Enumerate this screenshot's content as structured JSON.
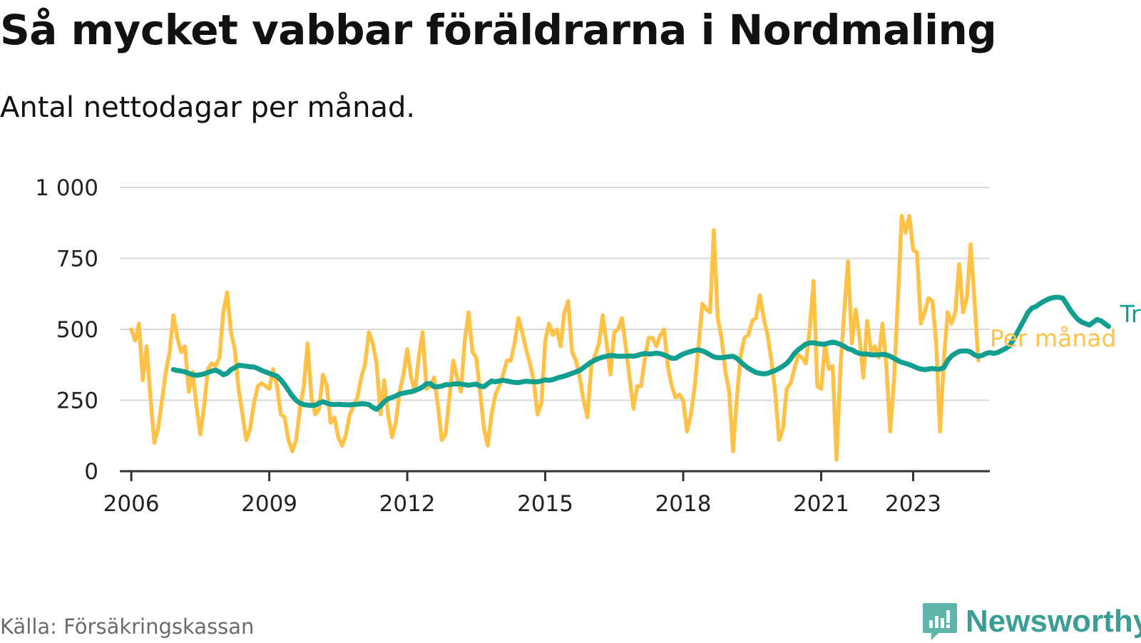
{
  "title": "Så mycket vabbar föräldrarna i Nordmaling",
  "subtitle": "Antal nettodagar per månad.",
  "source": "Källa: Försäkringskassan",
  "brand": {
    "name": "Newsworthy",
    "icon": "newsworthy-logo-icon",
    "color": "#3a9e93"
  },
  "chart_data": {
    "type": "line",
    "title": "Så mycket vabbar föräldrarna i Nordmaling",
    "subtitle": "Antal nettodagar per månad.",
    "xlabel": "",
    "ylabel": "",
    "ylim": [
      0,
      1000
    ],
    "xlim": [
      "2005-10",
      "2024-09"
    ],
    "x_ticks": [
      {
        "label": "2006",
        "value": "2006-01"
      },
      {
        "label": "2009",
        "value": "2009-01"
      },
      {
        "label": "2012",
        "value": "2012-01"
      },
      {
        "label": "2015",
        "value": "2015-01"
      },
      {
        "label": "2018",
        "value": "2018-01"
      },
      {
        "label": "2021",
        "value": "2021-01"
      },
      {
        "label": "2023",
        "value": "2023-01"
      }
    ],
    "y_ticks": [
      {
        "label": "0",
        "value": 0
      },
      {
        "label": "250",
        "value": 250
      },
      {
        "label": "500",
        "value": 500
      },
      {
        "label": "750",
        "value": 750
      },
      {
        "label": "1 000",
        "value": 1000
      }
    ],
    "grid": "horizontal",
    "legend": "end-of-line labels",
    "series": [
      {
        "name": "Trend",
        "color": "#139f8f",
        "start": "2006-12",
        "values": [
          358,
          355,
          353,
          350,
          345,
          340,
          338,
          340,
          343,
          348,
          353,
          356,
          350,
          340,
          345,
          358,
          365,
          373,
          372,
          370,
          368,
          367,
          362,
          355,
          350,
          345,
          340,
          335,
          322,
          305,
          285,
          265,
          250,
          240,
          235,
          233,
          232,
          233,
          240,
          245,
          240,
          236,
          235,
          236,
          235,
          234,
          234,
          235,
          236,
          238,
          237,
          235,
          225,
          218,
          230,
          245,
          255,
          260,
          265,
          272,
          275,
          278,
          280,
          285,
          290,
          297,
          308,
          309,
          298,
          298,
          300,
          305,
          305,
          307,
          308,
          307,
          305,
          303,
          305,
          307,
          300,
          298,
          308,
          318,
          315,
          318,
          320,
          318,
          315,
          313,
          312,
          315,
          317,
          316,
          315,
          315,
          318,
          322,
          320,
          323,
          328,
          332,
          335,
          340,
          345,
          350,
          355,
          365,
          375,
          385,
          392,
          398,
          402,
          405,
          408,
          407,
          405,
          405,
          405,
          406,
          405,
          408,
          412,
          415,
          413,
          414,
          416,
          414,
          410,
          404,
          398,
          398,
          406,
          413,
          418,
          422,
          426,
          428,
          424,
          418,
          410,
          403,
          400,
          400,
          402,
          404,
          405,
          398,
          385,
          373,
          363,
          355,
          348,
          345,
          343,
          345,
          350,
          355,
          362,
          370,
          380,
          395,
          415,
          428,
          438,
          448,
          452,
          453,
          450,
          448,
          448,
          452,
          455,
          452,
          447,
          440,
          432,
          428,
          420,
          415,
          413,
          413,
          410,
          410,
          410,
          412,
          410,
          405,
          398,
          390,
          384,
          380,
          376,
          370,
          364,
          360,
          358,
          360,
          362,
          360,
          360,
          365,
          390,
          406,
          415,
          422,
          424,
          424,
          420,
          410,
          405,
          408,
          415,
          418,
          415,
          418,
          425,
          432,
          440,
          460,
          485,
          510,
          535,
          560,
          575,
          580,
          590,
          598,
          605,
          610,
          613,
          613,
          610,
          590,
          568,
          550,
          535,
          525,
          520,
          515,
          525,
          535,
          530,
          520,
          510
        ]
      },
      {
        "name": "Per månad",
        "color": "#ffc247",
        "start": "2006-01",
        "values": [
          500,
          460,
          520,
          320,
          440,
          260,
          100,
          150,
          250,
          350,
          420,
          550,
          470,
          420,
          440,
          280,
          350,
          230,
          130,
          230,
          360,
          380,
          370,
          400,
          560,
          630,
          490,
          430,
          290,
          200,
          110,
          150,
          240,
          300,
          310,
          300,
          290,
          360,
          300,
          200,
          190,
          110,
          70,
          110,
          220,
          300,
          450,
          260,
          200,
          220,
          340,
          300,
          170,
          190,
          120,
          90,
          130,
          200,
          230,
          260,
          330,
          380,
          490,
          450,
          380,
          200,
          320,
          200,
          120,
          170,
          280,
          340,
          430,
          330,
          280,
          400,
          490,
          290,
          300,
          330,
          230,
          110,
          130,
          260,
          390,
          330,
          280,
          460,
          560,
          420,
          400,
          280,
          150,
          90,
          200,
          270,
          300,
          340,
          390,
          390,
          450,
          540,
          490,
          430,
          380,
          320,
          200,
          240,
          460,
          520,
          480,
          500,
          440,
          560,
          600,
          420,
          390,
          330,
          250,
          190,
          370,
          410,
          450,
          550,
          450,
          340,
          490,
          500,
          540,
          440,
          330,
          220,
          300,
          300,
          400,
          470,
          470,
          440,
          480,
          500,
          370,
          300,
          260,
          270,
          250,
          140,
          200,
          300,
          440,
          590,
          570,
          560,
          850,
          540,
          470,
          350,
          280,
          70,
          260,
          410,
          470,
          480,
          530,
          540,
          620,
          540,
          480,
          390,
          280,
          110,
          150,
          290,
          310,
          360,
          410,
          400,
          380,
          500,
          670,
          300,
          290,
          450,
          360,
          370,
          40,
          360,
          560,
          740,
          450,
          570,
          470,
          330,
          530,
          420,
          440,
          400,
          520,
          370,
          140,
          320,
          600,
          900,
          840,
          900,
          780,
          770,
          520,
          560,
          610,
          600,
          450,
          140,
          390,
          560,
          520,
          560,
          730,
          560,
          610,
          800,
          600,
          390
        ]
      }
    ]
  }
}
